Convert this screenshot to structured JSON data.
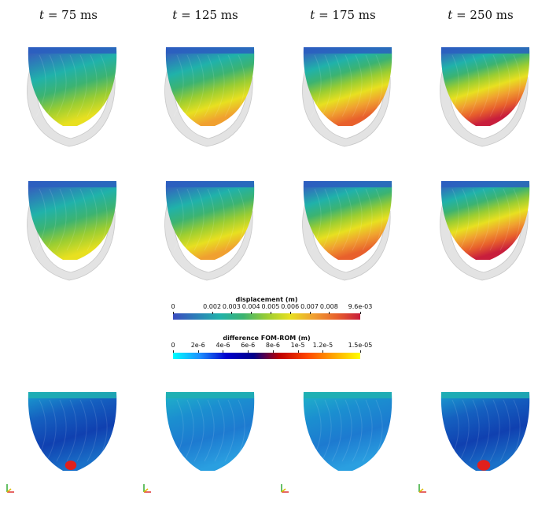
{
  "column_titles": [
    {
      "var": "t",
      "rest": " = 75 ms"
    },
    {
      "var": "t",
      "rest": " = 125 ms"
    },
    {
      "var": "t",
      "rest": " = 175 ms"
    },
    {
      "var": "t",
      "rest": " = 250 ms"
    }
  ],
  "displacement_colorbar": {
    "title": "displacement (m)",
    "ticks": [
      "0",
      "0.002",
      "0.003",
      "0.004",
      "0.005",
      "0.006",
      "0.007",
      "0.008",
      "9.6e-03"
    ]
  },
  "difference_colorbar": {
    "title": "difference FOM-ROM (m)",
    "ticks": [
      "0",
      "2e-6",
      "4e-6",
      "6e-6",
      "8e-6",
      "1e-5",
      "1.2e-5",
      "1.5e-05"
    ]
  },
  "colors": {
    "disp_scale": [
      "#3b4cc0",
      "#2c7fb8",
      "#20b2aa",
      "#3cb371",
      "#9acd32",
      "#e8e020",
      "#f0a030",
      "#e8602c",
      "#c81e3c"
    ],
    "diff_scale": [
      "#00ffff",
      "#1e90ff",
      "#0000cd",
      "#00008b",
      "#c00000",
      "#ff4500",
      "#ffa500",
      "#ffff00"
    ],
    "shell": "#e3e3e3"
  },
  "rows": {
    "fom_levels": [
      0.35,
      0.55,
      0.7,
      0.92
    ],
    "rom_levels": [
      0.35,
      0.55,
      0.7,
      0.92
    ],
    "diff_hotspot": [
      0.6,
      0.05,
      0.1,
      0.75
    ]
  }
}
